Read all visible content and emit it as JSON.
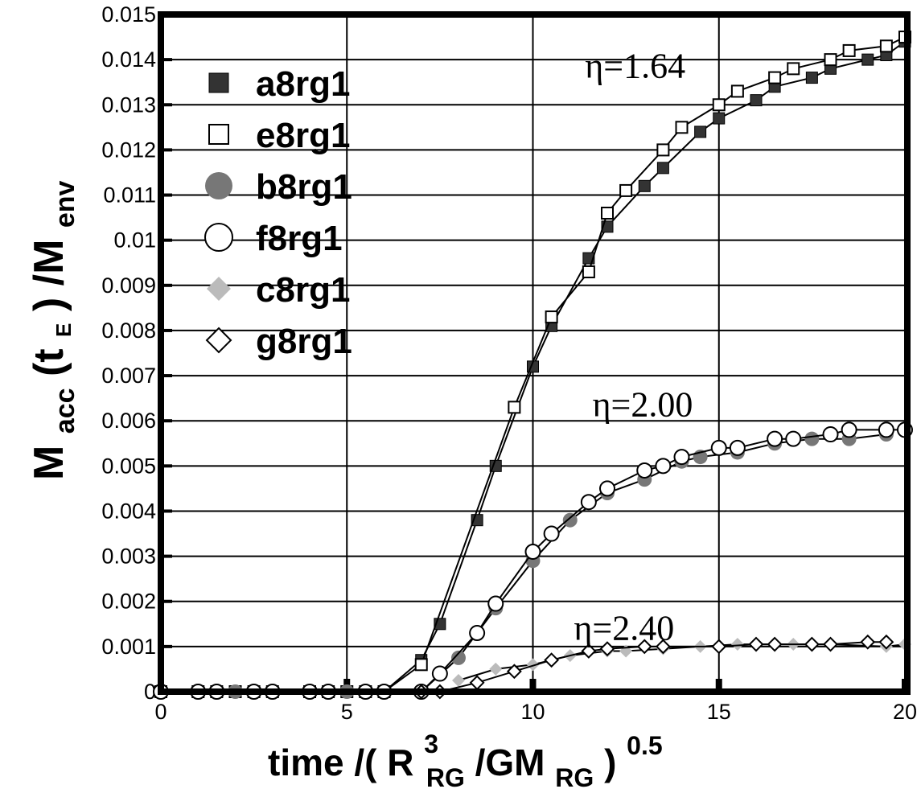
{
  "chart_data": {
    "type": "line",
    "xlim": [
      0,
      20
    ],
    "ylim": [
      0,
      0.015
    ],
    "grid": true,
    "legend_position": "top-left",
    "x_ticks": [
      "0",
      "5",
      "10",
      "15",
      "20"
    ],
    "y_ticks": [
      "0",
      "0.001",
      "0.002",
      "0.003",
      "0.004",
      "0.005",
      "0.006",
      "0.007",
      "0.008",
      "0.009",
      "0.01",
      "0.011",
      "0.012",
      "0.013",
      "0.014",
      "0.015"
    ],
    "xlabel": {
      "prefix": "time /( R",
      "sup": "3",
      "sub1": "RG",
      "mid": " /GM",
      "sub2": "RG",
      "close": " )",
      "sup2": "0.5"
    },
    "ylabel": {
      "m1": "M",
      "sub1": "acc",
      "t_open": "(t",
      "sub2": "E",
      "t_close": ") /M",
      "sub3": "env"
    },
    "annotations": [
      {
        "text": "η=1.64",
        "x": 11.4,
        "y": 0.0136
      },
      {
        "text": "η=2.00",
        "x": 11.6,
        "y": 0.0061
      },
      {
        "text": "η=2.40",
        "x": 11.1,
        "y": 0.00115
      }
    ],
    "series": [
      {
        "name": "a8rg1",
        "marker": "filled-square",
        "color": "#333333",
        "x": [
          0,
          1,
          1.5,
          2,
          2.5,
          3,
          4,
          4.5,
          5,
          5.5,
          6,
          7,
          7.5,
          8.5,
          9,
          10,
          10.5,
          11.5,
          12,
          13,
          13.5,
          14.5,
          15,
          16,
          16.5,
          17.5,
          18,
          19,
          19.5,
          20
        ],
        "y": [
          0,
          0,
          0,
          0,
          0,
          0,
          0,
          0,
          0,
          0,
          0,
          0.0007,
          0.0015,
          0.0038,
          0.005,
          0.0072,
          0.0081,
          0.0096,
          0.0103,
          0.0112,
          0.0116,
          0.0124,
          0.0127,
          0.0131,
          0.0134,
          0.0136,
          0.0138,
          0.014,
          0.0141,
          0.0144
        ]
      },
      {
        "name": "e8rg1",
        "marker": "open-square",
        "color": "#000000",
        "x": [
          0,
          1,
          1.5,
          2,
          2.5,
          3,
          4,
          4.5,
          5,
          5.5,
          6,
          7,
          9.5,
          10.5,
          11.5,
          12,
          12.5,
          13.5,
          14,
          15,
          15.5,
          16.5,
          17,
          18,
          18.5,
          19.5,
          20
        ],
        "y": [
          0,
          0,
          0,
          0,
          0,
          0,
          0,
          0,
          0,
          0,
          0,
          0.0006,
          0.0063,
          0.0083,
          0.0093,
          0.0106,
          0.0111,
          0.012,
          0.0125,
          0.013,
          0.0133,
          0.0136,
          0.0138,
          0.014,
          0.0142,
          0.0143,
          0.0145
        ]
      },
      {
        "name": "b8rg1",
        "marker": "filled-circle",
        "color": "#777777",
        "x": [
          0,
          1,
          2,
          3,
          4,
          5,
          6,
          7,
          8,
          9,
          10,
          11,
          12,
          13,
          14,
          14.5,
          15.5,
          16.5,
          17.5,
          18.5,
          19.5
        ],
        "y": [
          0,
          0,
          0,
          0,
          0,
          0,
          0,
          0,
          0.00075,
          0.00185,
          0.0029,
          0.0038,
          0.0044,
          0.0047,
          0.0051,
          0.0052,
          0.0053,
          0.0055,
          0.0056,
          0.0056,
          0.0057
        ]
      },
      {
        "name": "f8rg1",
        "marker": "open-circle",
        "color": "#000000",
        "x": [
          0,
          1,
          1.5,
          2.5,
          3,
          4,
          4.5,
          5.5,
          6,
          7,
          7.5,
          8.5,
          9,
          10,
          10.5,
          11.5,
          12,
          13,
          13.5,
          14,
          15,
          15.5,
          16.5,
          17,
          18,
          18.5,
          19.5,
          20
        ],
        "y": [
          0,
          0,
          0,
          0,
          0,
          0,
          0,
          0,
          0,
          0,
          0.0004,
          0.0013,
          0.00195,
          0.0031,
          0.0035,
          0.0042,
          0.0045,
          0.0049,
          0.005,
          0.0052,
          0.0054,
          0.0054,
          0.0056,
          0.0056,
          0.0057,
          0.0058,
          0.0058,
          0.0058
        ]
      },
      {
        "name": "c8rg1",
        "marker": "filled-diamond",
        "color": "#bbbbbb",
        "x": [
          8,
          9,
          10,
          11,
          12,
          12.5,
          13.5,
          14.5,
          15.5,
          16.5,
          17,
          18,
          19.5,
          20
        ],
        "y": [
          0.00025,
          0.0005,
          0.0006,
          0.0008,
          0.0009,
          0.0009,
          0.00095,
          0.001,
          0.00105,
          0.00105,
          0.00105,
          0.00105,
          0.001,
          0.00105
        ]
      },
      {
        "name": "g8rg1",
        "marker": "open-diamond",
        "color": "#000000",
        "x": [
          7,
          7.5,
          8.5,
          9.5,
          10.5,
          11.5,
          12,
          13,
          13.5,
          15,
          16,
          16.5,
          17.5,
          18,
          19,
          19.5
        ],
        "y": [
          0,
          0,
          0.0002,
          0.00045,
          0.0007,
          0.0009,
          0.00095,
          0.001,
          0.001,
          0.001,
          0.00105,
          0.00105,
          0.00105,
          0.00105,
          0.0011,
          0.0011
        ]
      }
    ]
  }
}
